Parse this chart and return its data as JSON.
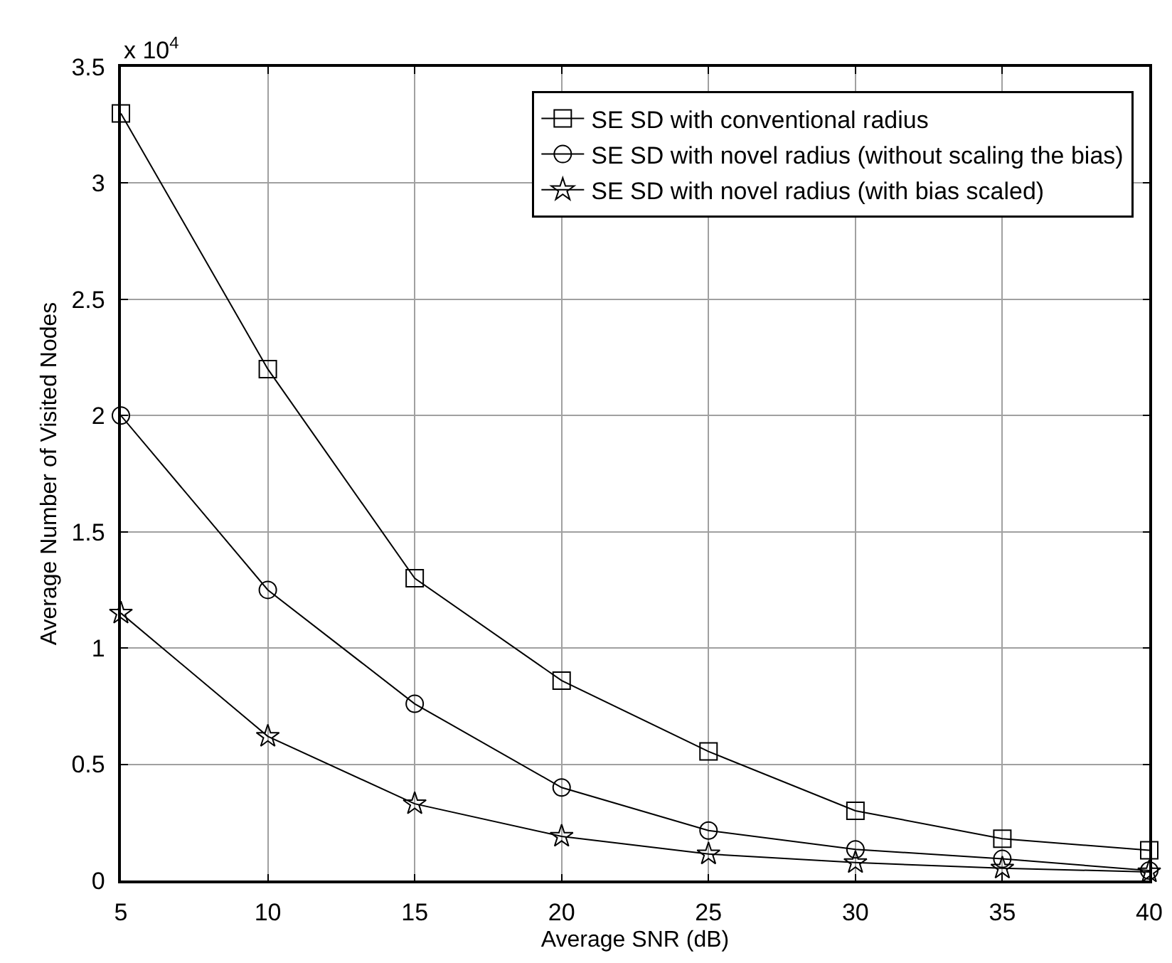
{
  "chart_data": {
    "type": "line",
    "xlabel": "Average SNR (dB)",
    "ylabel": "Average Number of Visited Nodes",
    "annotations": [
      "x 10$^{4}$"
    ],
    "x": [
      5,
      10,
      15,
      20,
      25,
      30,
      35,
      40
    ],
    "series": [
      {
        "name": "SE SD with conventional radius",
        "color": "#000000",
        "marker": "square",
        "values": [
          3.3,
          2.2,
          1.3,
          0.86,
          0.555,
          0.3,
          0.18,
          0.13
        ]
      },
      {
        "name": "SE SD with novel radius (without scaling the bias)",
        "color": "#000000",
        "marker": "circle",
        "values": [
          2.0,
          1.25,
          0.76,
          0.4,
          0.215,
          0.134,
          0.093,
          0.043
        ]
      },
      {
        "name": "SE SD with novel radius (with bias scaled)",
        "color": "#000000",
        "marker": "star",
        "values": [
          1.15,
          0.62,
          0.33,
          0.19,
          0.114,
          0.077,
          0.053,
          0.037
        ]
      }
    ],
    "xlim": [
      5,
      40
    ],
    "xticks": [
      5,
      10,
      15,
      20,
      25,
      30,
      35,
      40
    ],
    "ylim": [
      0,
      3.5
    ],
    "yticks": [
      0,
      0.5,
      1,
      1.5,
      2,
      2.5,
      3,
      3.5
    ],
    "grid": true,
    "legend": "top right",
    "line_style": "solid"
  }
}
